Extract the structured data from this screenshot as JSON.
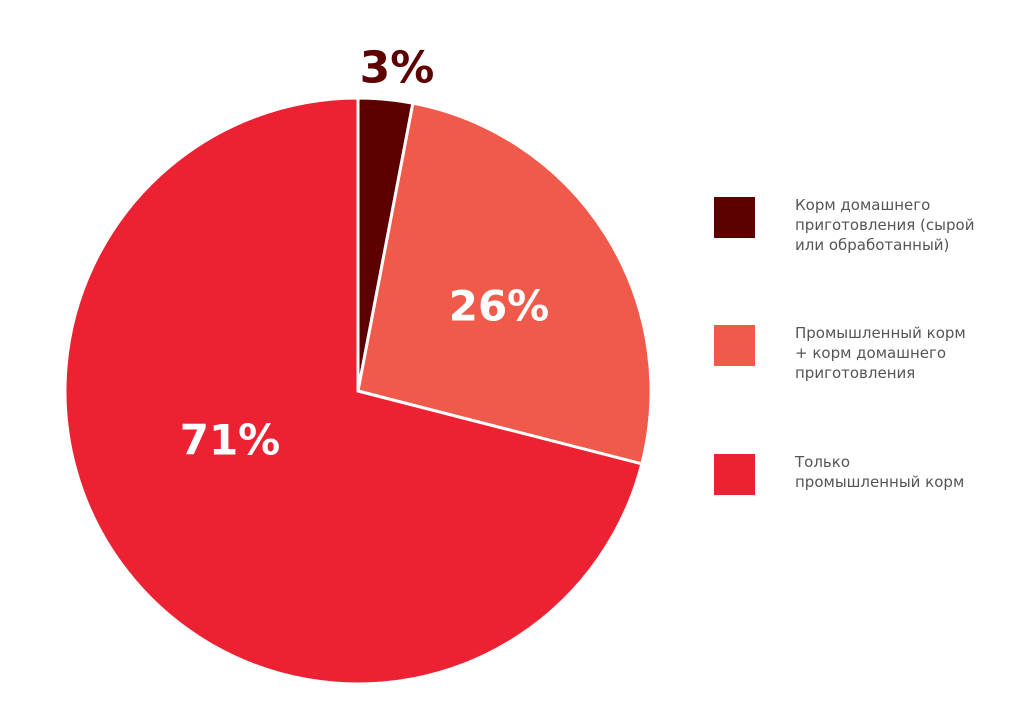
{
  "chart_data": {
    "type": "pie",
    "title": "",
    "categories": [
      "Корм домашнего приготовления (сырой или обработанный)",
      "Промышленный корм + корм домашнего приготовления",
      "Только промышленный корм"
    ],
    "values": [
      3,
      26,
      71
    ],
    "unit": "%",
    "colors": [
      "#5c0000",
      "#f05a4a",
      "#ec2232"
    ],
    "start_angle": "12 o'clock, clockwise",
    "legend_position": "right"
  },
  "labels": {
    "home": "3%",
    "mixed": "26%",
    "industrial": "71%"
  },
  "legend": {
    "items": [
      {
        "label": "Корм домашнего приготовления (сырой или обработанный)",
        "color": "#5c0000"
      },
      {
        "label": "Промышленный корм + корм домашнего приготовления",
        "color": "#f05a4a"
      },
      {
        "label": "Только промышленный корм",
        "color": "#ec2232"
      }
    ]
  },
  "colors": {
    "outer_label": "#5c0000",
    "legend_text": "#555555"
  }
}
